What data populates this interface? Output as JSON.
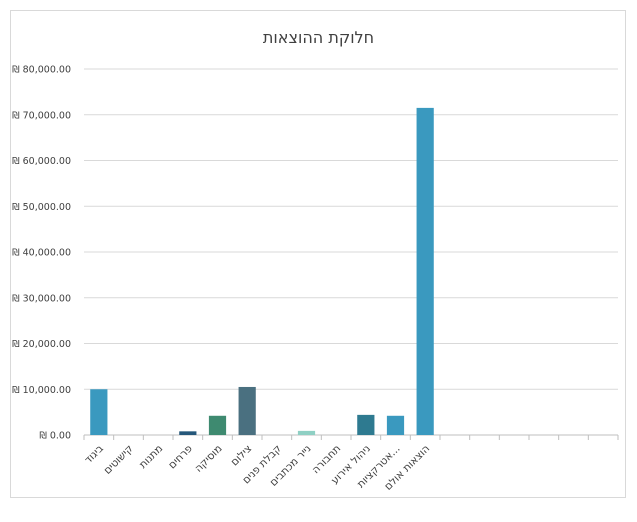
{
  "chart_data": {
    "type": "bar",
    "title": "חלוקת ההוצאות",
    "ylim": [
      0,
      80000
    ],
    "y_tick_step": 10000,
    "y_tick_labels": [
      "₪ 0.00",
      "₪ 10,000.00",
      "₪ 20,000.00",
      "₪ 30,000.00",
      "₪ 40,000.00",
      "₪ 50,000.00",
      "₪ 60,000.00",
      "₪ 70,000.00",
      "₪ 80,000.00"
    ],
    "grid": true,
    "legend": "none",
    "slot_count": 18,
    "categories": [
      "ביגוד",
      "קישוטים",
      "מתנות",
      "פרחים",
      "מוסיקה",
      "צילום",
      "קבלת פנים",
      "נייר מכתבים",
      "תחבורה",
      "ניהול אירוע",
      "אטרקציות...",
      "הוצאות אולם"
    ],
    "values": [
      10000,
      0,
      0,
      800,
      4200,
      10500,
      0,
      900,
      0,
      4400,
      4200,
      71500
    ],
    "colors": [
      "#3a99bf",
      "#3a99bf",
      "#3a99bf",
      "#25577a",
      "#3e8a70",
      "#4a7080",
      "#3a99bf",
      "#8fd0c4",
      "#3a99bf",
      "#2e7a90",
      "#3a99bf",
      "#3a99bf"
    ]
  }
}
